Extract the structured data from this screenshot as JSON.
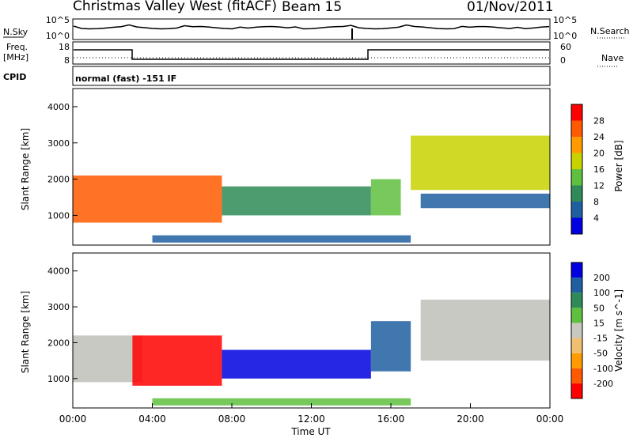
{
  "header": {
    "title": "Christmas Valley West (fitACF)",
    "beam": "Beam 15",
    "date": "01/Nov/2011",
    "mode": "normal (fast) -151 IF"
  },
  "left_labels": {
    "nsky": "N.Sky",
    "freq": "Freq.",
    "freq_unit": "[MHz]",
    "cpid": "CPID"
  },
  "right_labels": {
    "nsearch": "N.Search",
    "nave": "Nave"
  },
  "noise_axis_ticks": [
    "10^5",
    "10^0"
  ],
  "freq_axis_ticks": [
    "18",
    "8"
  ],
  "nave_axis_ticks": [
    "60",
    "0"
  ],
  "colors": {
    "power_scale": [
      "#0000e0",
      "#1f5fa0",
      "#2e8b57",
      "#5fbf3f",
      "#c8d200",
      "#ff9b00",
      "#ff5a00",
      "#ff0000"
    ],
    "velocity_scale": [
      "#ff0000",
      "#ff5a00",
      "#ff9b00",
      "#f0c070",
      "#c8c8c0",
      "#5fbf3f",
      "#2e8b57",
      "#1f5fa0",
      "#0000e0"
    ],
    "ground_scatter": "#c0c0b8"
  },
  "chart_data": [
    {
      "type": "heatmap",
      "name": "power",
      "xlabel": "",
      "ylabel": "Slant Range [km]",
      "xlim": [
        "00:00",
        "24:00"
      ],
      "ylim": [
        180,
        4500
      ],
      "y_ticks": [
        "1000",
        "2000",
        "3000",
        "4000"
      ],
      "colorbar": {
        "label": "Power [dB]",
        "ticks": [
          "4",
          "8",
          "12",
          "16",
          "20",
          "24",
          "28"
        ]
      },
      "features": [
        {
          "time_start": 0.0,
          "time_end": 7.5,
          "range_start": 800,
          "range_end": 2100,
          "value_db": 28
        },
        {
          "time_start": 7.5,
          "time_end": 15.0,
          "range_start": 1000,
          "range_end": 1800,
          "value_db": 12
        },
        {
          "time_start": 15.0,
          "time_end": 16.5,
          "range_start": 1000,
          "range_end": 2000,
          "value_db": 16
        },
        {
          "time_start": 17.0,
          "time_end": 24.0,
          "range_start": 1700,
          "range_end": 3200,
          "value_db": 20
        },
        {
          "time_start": 17.5,
          "time_end": 24.0,
          "range_start": 1200,
          "range_end": 1600,
          "value_db": 8
        },
        {
          "time_start": 4.0,
          "time_end": 17.0,
          "range_start": 250,
          "range_end": 450,
          "value_db": 8
        }
      ]
    },
    {
      "type": "heatmap",
      "name": "velocity",
      "xlabel": "Time UT",
      "ylabel": "Slant Range [km]",
      "xlim": [
        "00:00",
        "24:00"
      ],
      "ylim": [
        180,
        4500
      ],
      "x_ticks": [
        "00:00",
        "04:00",
        "08:00",
        "12:00",
        "16:00",
        "20:00",
        "00:00"
      ],
      "y_ticks": [
        "1000",
        "2000",
        "3000",
        "4000"
      ],
      "colorbar": {
        "label": "Velocity [m s^-1]",
        "ticks": [
          "200",
          "100",
          "50",
          "15",
          "-15",
          "-50",
          "-100",
          "-200"
        ]
      },
      "features": [
        {
          "time_start": 0.0,
          "time_end": 3.5,
          "range_start": 900,
          "range_end": 2200,
          "velocity": 0
        },
        {
          "time_start": 3.0,
          "time_end": 7.5,
          "range_start": 800,
          "range_end": 2200,
          "velocity": -200
        },
        {
          "time_start": 7.5,
          "time_end": 15.0,
          "range_start": 1000,
          "range_end": 1800,
          "velocity": 200
        },
        {
          "time_start": 15.0,
          "time_end": 17.0,
          "range_start": 1200,
          "range_end": 2600,
          "velocity": 150
        },
        {
          "time_start": 17.5,
          "time_end": 24.0,
          "range_start": 1500,
          "range_end": 3200,
          "velocity": 0
        },
        {
          "time_start": 4.0,
          "time_end": 17.0,
          "range_start": 250,
          "range_end": 450,
          "velocity": 15
        }
      ]
    }
  ]
}
